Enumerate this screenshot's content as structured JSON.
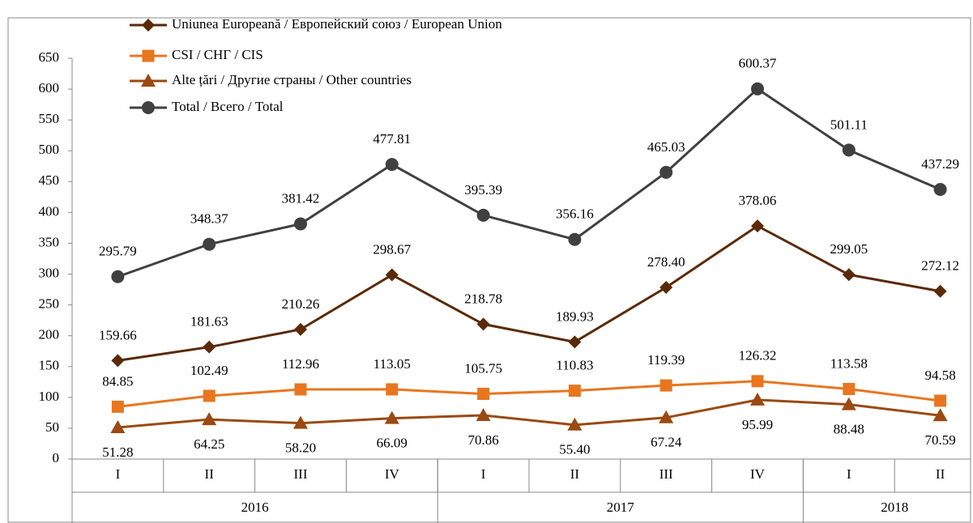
{
  "chart_data": {
    "type": "line",
    "categories": [
      "I",
      "II",
      "III",
      "IV",
      "I",
      "II",
      "III",
      "IV",
      "I",
      "II"
    ],
    "groups": [
      "2016",
      "2017",
      "2018"
    ],
    "group_sizes": [
      4,
      4,
      2
    ],
    "ylim": [
      0,
      650
    ],
    "yticks": [
      0,
      50,
      100,
      150,
      200,
      250,
      300,
      350,
      400,
      450,
      500,
      550,
      600,
      650
    ],
    "legend": "top-left",
    "series": [
      {
        "name": "Uniunea Europeană / Европейский союз / European Union",
        "color": "#5a2a08",
        "marker": "diamond",
        "label_pos": "above",
        "values": [
          159.66,
          181.63,
          210.26,
          298.67,
          218.78,
          189.93,
          278.4,
          378.06,
          299.05,
          272.12
        ],
        "value_labels": [
          "159.66",
          "181.63",
          "210.26",
          "298.67",
          "218.78",
          "189.93",
          "278.40",
          "378.06",
          "299.05",
          "272.12"
        ]
      },
      {
        "name": "CSI / СНГ / CIS",
        "color": "#e8761f",
        "marker": "square",
        "label_pos": "above",
        "values": [
          84.85,
          102.49,
          112.96,
          113.05,
          105.75,
          110.83,
          119.39,
          126.32,
          113.58,
          94.58
        ],
        "value_labels": [
          "84.85",
          "102.49",
          "112.96",
          "113.05",
          "105.75",
          "110.83",
          "119.39",
          "126.32",
          "113.58",
          "94.58"
        ]
      },
      {
        "name": "Alte țări / Другие страны / Other countries",
        "color": "#9a4a12",
        "marker": "triangle",
        "label_pos": "below",
        "values": [
          51.28,
          64.25,
          58.2,
          66.09,
          70.86,
          55.4,
          67.24,
          95.99,
          88.48,
          70.59
        ],
        "value_labels": [
          "51.28",
          "64.25",
          "58.20",
          "66.09",
          "70.86",
          "55.40",
          "67.24",
          "95.99",
          "88.48",
          "70.59"
        ]
      },
      {
        "name": "Total / Всего / Total",
        "color": "#404040",
        "marker": "circle",
        "label_pos": "above",
        "values": [
          295.79,
          348.37,
          381.42,
          477.81,
          395.39,
          356.16,
          465.03,
          600.37,
          501.11,
          437.29
        ],
        "value_labels": [
          "295.79",
          "348.37",
          "381.42",
          "477.81",
          "395.39",
          "356.16",
          "465.03",
          "600.37",
          "501.11",
          "437.29"
        ]
      }
    ]
  }
}
